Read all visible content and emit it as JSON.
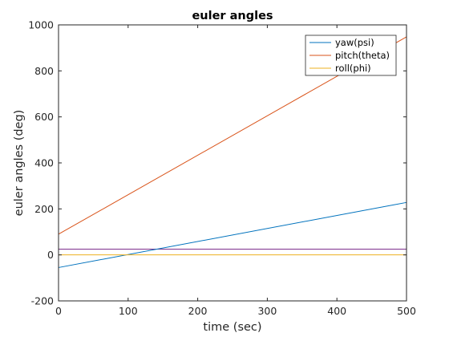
{
  "chart_data": {
    "type": "line",
    "title": "euler angles",
    "xlabel": "time (sec)",
    "ylabel": "euler angles (deg)",
    "xlim": [
      0,
      500
    ],
    "ylim": [
      -200,
      1000
    ],
    "xticks": [
      0,
      100,
      200,
      300,
      400,
      500
    ],
    "yticks": [
      -200,
      0,
      200,
      400,
      600,
      800,
      1000
    ],
    "grid": false,
    "legend_position": "top-right",
    "series": [
      {
        "name": "yaw(psi)",
        "color": "#0072BD",
        "x": [
          0,
          500
        ],
        "y": [
          -55,
          228
        ]
      },
      {
        "name": "pitch(theta)",
        "color": "#D95319",
        "x": [
          0,
          500
        ],
        "y": [
          90,
          948
        ]
      },
      {
        "name": "roll(phi)",
        "color": "#EDB120",
        "x": [
          0,
          500
        ],
        "y": [
          0,
          0
        ]
      }
    ],
    "extra_lines": [
      {
        "color": "#7E2F8E",
        "x": [
          0,
          500
        ],
        "y": [
          25,
          25
        ]
      }
    ]
  }
}
